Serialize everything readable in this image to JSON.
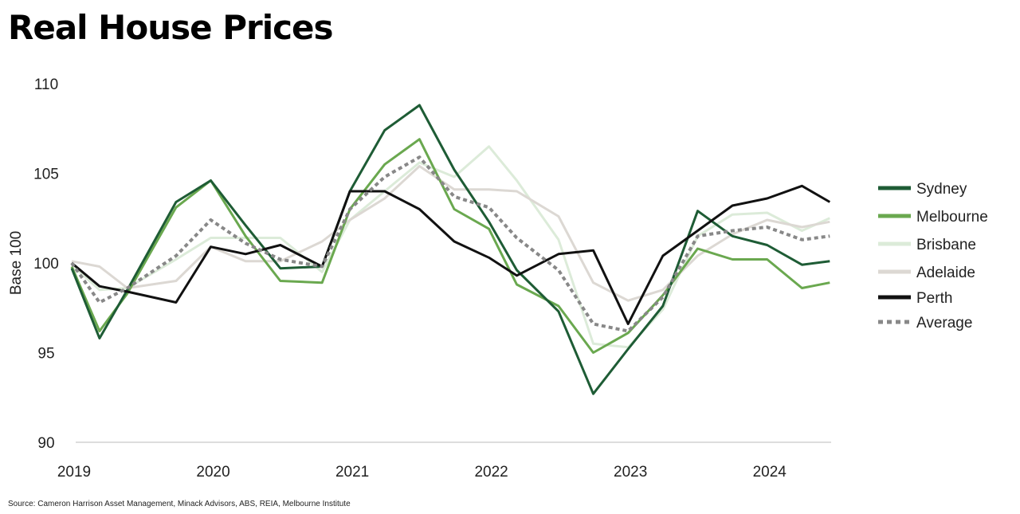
{
  "title": "Real House Prices",
  "source": "Source: Cameron Harrison Asset Management, Minack Advisors, ABS, REIA, Melbourne Institute",
  "chart_data": {
    "type": "line",
    "title": "Real House Prices",
    "xlabel": "",
    "ylabel": "Base 100",
    "xlim": [
      2019,
      2024.5
    ],
    "ylim": [
      90,
      110
    ],
    "yticks": [
      90,
      95,
      100,
      105,
      110
    ],
    "xticks": [
      "2019",
      "2020",
      "2021",
      "2022",
      "2023",
      "2024"
    ],
    "grid": false,
    "legend_position": "right",
    "x": [
      2019,
      2019.2,
      2019.4,
      2019.75,
      2020,
      2020.25,
      2020.5,
      2020.8,
      2021,
      2021.25,
      2021.5,
      2021.75,
      2022,
      2022.2,
      2022.5,
      2022.75,
      2023,
      2023.25,
      2023.5,
      2023.75,
      2024,
      2024.25,
      2024.45
    ],
    "series": [
      {
        "name": "Sydney",
        "color": "#1e5c35",
        "dash": false,
        "values": [
          99.7,
          95.8,
          98.5,
          103.4,
          104.6,
          102.1,
          99.7,
          99.8,
          104.0,
          107.4,
          108.8,
          105.2,
          102.3,
          99.6,
          97.3,
          92.7,
          95.2,
          97.6,
          102.9,
          101.5,
          101.0,
          99.9,
          100.1
        ]
      },
      {
        "name": "Melbourne",
        "color": "#6aa84f",
        "dash": false,
        "values": [
          99.8,
          96.2,
          98.3,
          103.1,
          104.6,
          101.5,
          99.0,
          98.9,
          103.0,
          105.5,
          106.9,
          103.0,
          101.9,
          98.8,
          97.6,
          95.0,
          96.1,
          98.2,
          100.8,
          100.2,
          100.2,
          98.6,
          98.9
        ]
      },
      {
        "name": "Brisbane",
        "color": "#dcebd9",
        "dash": false,
        "values": [
          99.9,
          98.5,
          98.6,
          100.2,
          101.4,
          101.4,
          101.4,
          99.5,
          102.4,
          104.0,
          105.6,
          104.8,
          106.5,
          104.6,
          101.3,
          95.5,
          95.3,
          97.4,
          101.5,
          102.7,
          102.8,
          101.8,
          102.5
        ]
      },
      {
        "name": "Adelaide",
        "color": "#dcd8d3",
        "dash": false,
        "values": [
          100.1,
          99.8,
          98.6,
          99.0,
          100.9,
          100.1,
          100.1,
          101.2,
          102.4,
          103.6,
          105.4,
          104.1,
          104.1,
          104.0,
          102.6,
          98.9,
          97.9,
          98.5,
          100.4,
          101.6,
          102.4,
          102.0,
          102.3
        ]
      },
      {
        "name": "Perth",
        "color": "#111111",
        "dash": false,
        "values": [
          100.0,
          98.7,
          98.4,
          97.8,
          100.9,
          100.5,
          101.0,
          99.8,
          104.0,
          104.0,
          103.0,
          101.2,
          100.3,
          99.3,
          100.5,
          100.7,
          96.6,
          100.4,
          101.8,
          103.2,
          103.6,
          104.3,
          103.4
        ]
      },
      {
        "name": "Average",
        "color": "#888888",
        "dash": true,
        "values": [
          100.0,
          97.8,
          98.6,
          100.4,
          102.4,
          101.1,
          100.2,
          99.8,
          103.0,
          104.8,
          105.9,
          103.7,
          103.1,
          101.4,
          99.6,
          96.6,
          96.2,
          98.1,
          101.5,
          101.8,
          102.0,
          101.3,
          101.5
        ]
      }
    ]
  }
}
